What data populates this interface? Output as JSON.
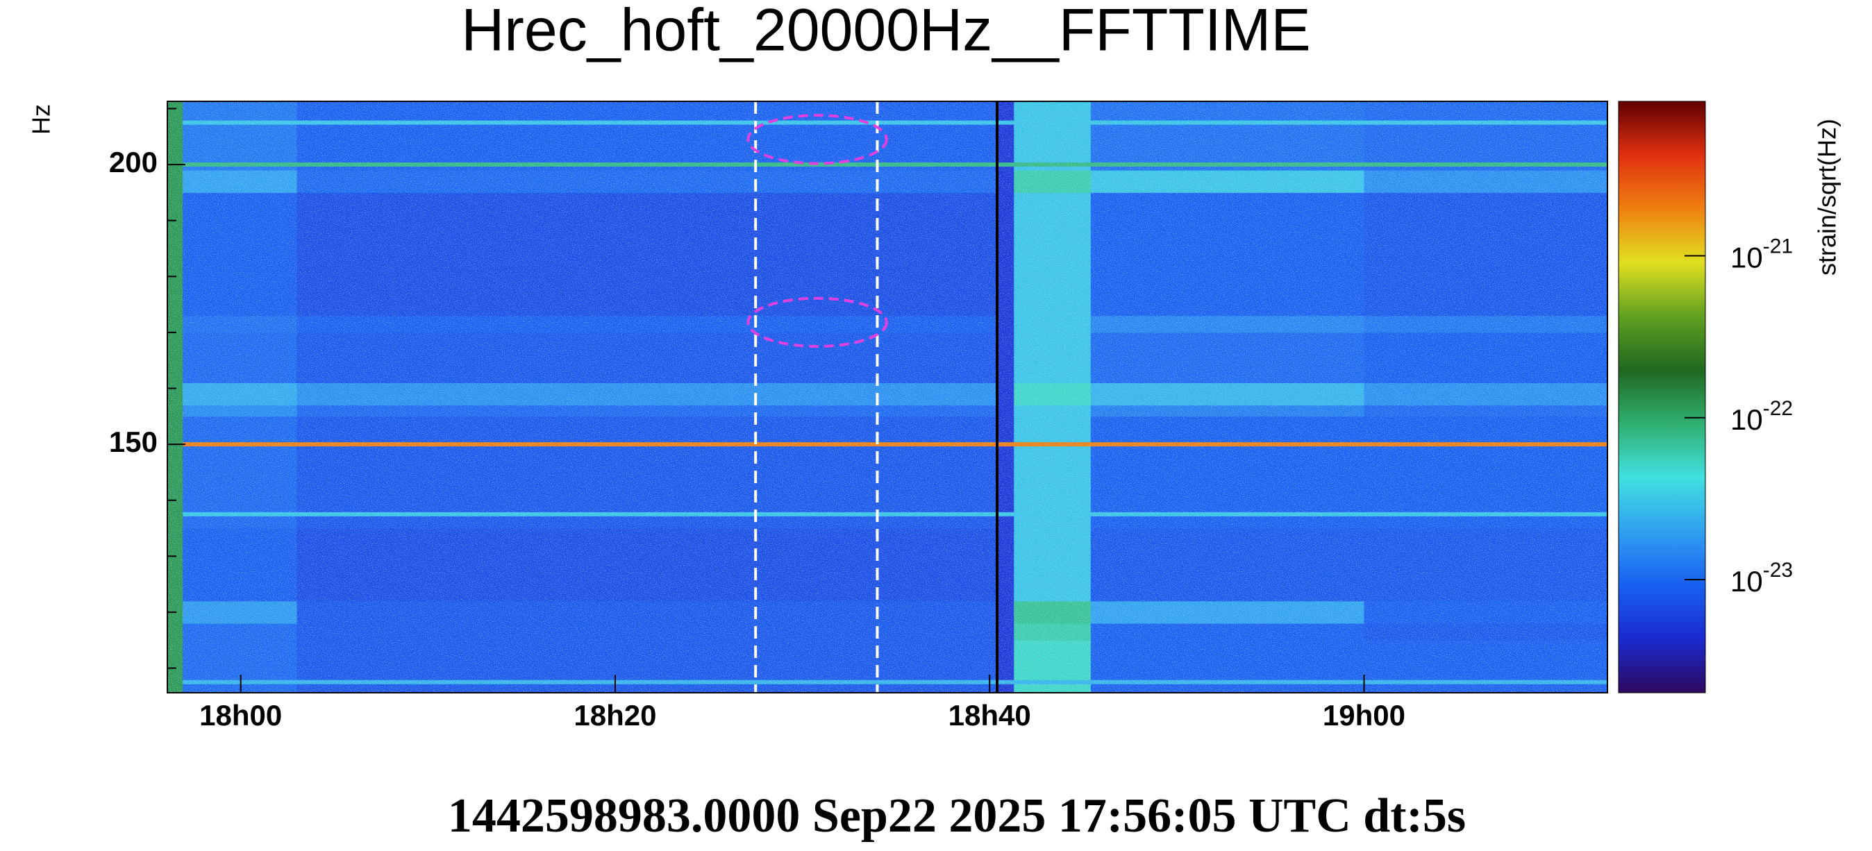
{
  "chart_data": {
    "type": "spectrogram",
    "title": "Hrec_hoft_20000Hz__FFTTIME",
    "ylabel": "Hz",
    "zlabel": "strain/sqrt(Hz)",
    "footer": "1442598983.0000 Sep22 2025 17:56:05 UTC dt:5s",
    "xlim": [
      1076.08,
      1153
    ],
    "xticks": [
      {
        "value": 1080,
        "label": "18h00"
      },
      {
        "value": 1100,
        "label": "18h20"
      },
      {
        "value": 1120,
        "label": "18h40"
      },
      {
        "value": 1140,
        "label": "19h00"
      }
    ],
    "ylim": [
      105.6,
      211.3
    ],
    "yticks": [
      150,
      200
    ],
    "yminor": [
      110,
      120,
      130,
      140,
      160,
      170,
      180,
      190,
      210
    ],
    "zscale": "log",
    "zlim": [
      2e-24,
      9e-21
    ],
    "zticks": [
      {
        "value": 1e-21,
        "label": "10",
        "exponent": "-21"
      },
      {
        "value": 1e-22,
        "label": "10",
        "exponent": "-22"
      },
      {
        "value": 1e-23,
        "label": "10",
        "exponent": "-23"
      }
    ],
    "colormap": [
      "#2d0a5e",
      "#1a2ad0",
      "#1860f0",
      "#30a0f0",
      "#40e0e0",
      "#30b070",
      "#206820",
      "#60a020",
      "#e0e020",
      "#f08010",
      "#e03010",
      "#600000"
    ],
    "xbins": [
      1076.08,
      1076.9,
      1083,
      1120.4,
      1121.3,
      1125.4,
      1140,
      1153
    ],
    "ybins": [
      105.6,
      115,
      118,
      122,
      135,
      155,
      157,
      161,
      170,
      173,
      195,
      199,
      211.3
    ],
    "z": [
      [
        1.2e-22,
        1e-23,
        8e-24,
        5e-24,
        5e-23,
        9e-24,
        9e-24
      ],
      [
        1.2e-22,
        1e-23,
        8e-24,
        5e-24,
        6e-23,
        9e-24,
        8e-24
      ],
      [
        1.2e-22,
        1.8e-23,
        8e-24,
        5e-24,
        7e-23,
        2e-23,
        9e-24
      ],
      [
        1.2e-22,
        9e-24,
        7e-24,
        5e-24,
        3e-23,
        8e-24,
        8e-24
      ],
      [
        1.2e-22,
        1e-23,
        8e-24,
        5e-24,
        3e-23,
        9e-24,
        9e-24
      ],
      [
        1.2e-22,
        1.5e-23,
        1e-23,
        5e-24,
        3e-23,
        1.3e-23,
        1e-23
      ],
      [
        1.2e-22,
        2.2e-23,
        1.6e-23,
        5e-24,
        5e-23,
        2.5e-23,
        1.6e-23
      ],
      [
        1.2e-22,
        1e-23,
        8e-24,
        5e-24,
        3e-23,
        1e-23,
        9e-24
      ],
      [
        1.2e-22,
        1.1e-23,
        9e-24,
        5e-24,
        3e-23,
        1.4e-23,
        1.2e-23
      ],
      [
        1.2e-22,
        9e-24,
        7e-24,
        5e-24,
        3e-23,
        9e-24,
        8e-24
      ],
      [
        1.2e-22,
        2e-23,
        1e-23,
        5e-24,
        6e-23,
        3e-23,
        1.6e-23
      ],
      [
        1.2e-22,
        1.2e-23,
        9e-24,
        5e-24,
        3e-23,
        1.1e-23,
        1e-23
      ]
    ],
    "lines": [
      {
        "y": 150,
        "value": 2e-21
      },
      {
        "y": 200,
        "value": 8e-23
      },
      {
        "y": 207.5,
        "value": 3e-23
      },
      {
        "y": 137.5,
        "value": 3e-23
      },
      {
        "y": 107.5,
        "value": 2.5e-23
      }
    ],
    "vlines": [
      {
        "x": 1107.5,
        "color": "#ffffff",
        "dashed": true
      },
      {
        "x": 1114,
        "color": "#ffffff",
        "dashed": true
      },
      {
        "x": 1120.4,
        "color": "#000000",
        "dashed": false
      }
    ],
    "ellipses": [
      {
        "x": 1110.8,
        "y": 204.5,
        "rx": 3.7,
        "ry": 4.3,
        "color": "#e040e0"
      },
      {
        "x": 1110.8,
        "y": 171.8,
        "rx": 3.7,
        "ry": 4.3,
        "color": "#e040e0"
      }
    ]
  }
}
